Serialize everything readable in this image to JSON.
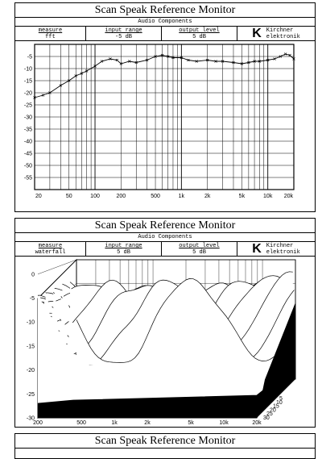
{
  "panels": [
    {
      "title": "Scan Speak Reference Monitor",
      "subtitle": "Audio Components",
      "measure_label": "measure",
      "measure_value": "fft",
      "input_label": "input range",
      "input_value": "-5 dB",
      "output_label": "output level",
      "output_value": "5 dB",
      "logo_letter": "K",
      "company_line1": "Kirchner",
      "company_line2": "elektronik"
    },
    {
      "title": "Scan Speak Reference Monitor",
      "subtitle": "Audio Components",
      "measure_label": "measure",
      "measure_value": "waterfall",
      "input_label": "input range",
      "input_value": "5 dB",
      "output_label": "output level",
      "output_value": "5 dB",
      "logo_letter": "K",
      "company_line1": "Kirchner",
      "company_line2": "elektronik"
    },
    {
      "title": "Scan Speak Reference Monitor"
    }
  ],
  "chart_data": [
    {
      "type": "line",
      "x_scale": "log",
      "xlim": [
        20,
        20000
      ],
      "ylim": [
        -60,
        0
      ],
      "grid": true,
      "x_ticks": [
        20,
        50,
        100,
        200,
        500,
        1000,
        2000,
        5000,
        10000,
        20000
      ],
      "x_tick_labels": [
        "20",
        "50",
        "100",
        "200",
        "500",
        "1k",
        "2k",
        "5k",
        "10k",
        "20k"
      ],
      "y_ticks": [
        -5,
        -10,
        -15,
        -20,
        -25,
        -30,
        -35,
        -40,
        -45,
        -50,
        -55
      ],
      "y_tick_labels": [
        "-5",
        "-10",
        "-15",
        "-20",
        "-25",
        "-30",
        "-35",
        "-40",
        "-45",
        "-50",
        "-55"
      ],
      "series": [
        {
          "x": [
            20,
            25,
            30,
            40,
            50,
            60,
            70,
            80,
            100,
            120,
            150,
            180,
            200,
            250,
            300,
            400,
            500,
            600,
            700,
            800,
            1000,
            1200,
            1500,
            2000,
            2500,
            3000,
            4000,
            5000,
            6000,
            7000,
            8000,
            10000,
            12000,
            14000,
            16000,
            18000,
            20000
          ],
          "y": [
            -22,
            -21,
            -20,
            -17,
            -15,
            -13,
            -12,
            -11,
            -9,
            -7,
            -6,
            -6.5,
            -8,
            -7,
            -7.5,
            -6.5,
            -5,
            -4.5,
            -5,
            -5.5,
            -5.5,
            -6.5,
            -7,
            -6.5,
            -7,
            -7,
            -7.5,
            -8,
            -7.5,
            -7,
            -7,
            -6.5,
            -6,
            -5,
            -4,
            -4.5,
            -6
          ]
        }
      ]
    },
    {
      "type": "waterfall",
      "x_scale": "log",
      "xlim": [
        200,
        20000
      ],
      "ylim": [
        -30,
        3
      ],
      "x_ticks": [
        200,
        500,
        1000,
        2000,
        5000,
        10000,
        20000
      ],
      "x_tick_labels": [
        "200",
        "500",
        "1k",
        "2k",
        "5k",
        "10k",
        "20k"
      ],
      "y_ticks": [
        0,
        -5,
        -10,
        -15,
        -20,
        -25,
        -30
      ],
      "y_tick_labels": [
        "0",
        "-5",
        "-10",
        "-15",
        "-20",
        "-25",
        "-30"
      ],
      "z_ticks": [
        5,
        10,
        15,
        20,
        25,
        30
      ],
      "z_tick_labels": [
        "5",
        "10",
        "15",
        "20",
        "25",
        "30"
      ],
      "slices": 30
    }
  ]
}
